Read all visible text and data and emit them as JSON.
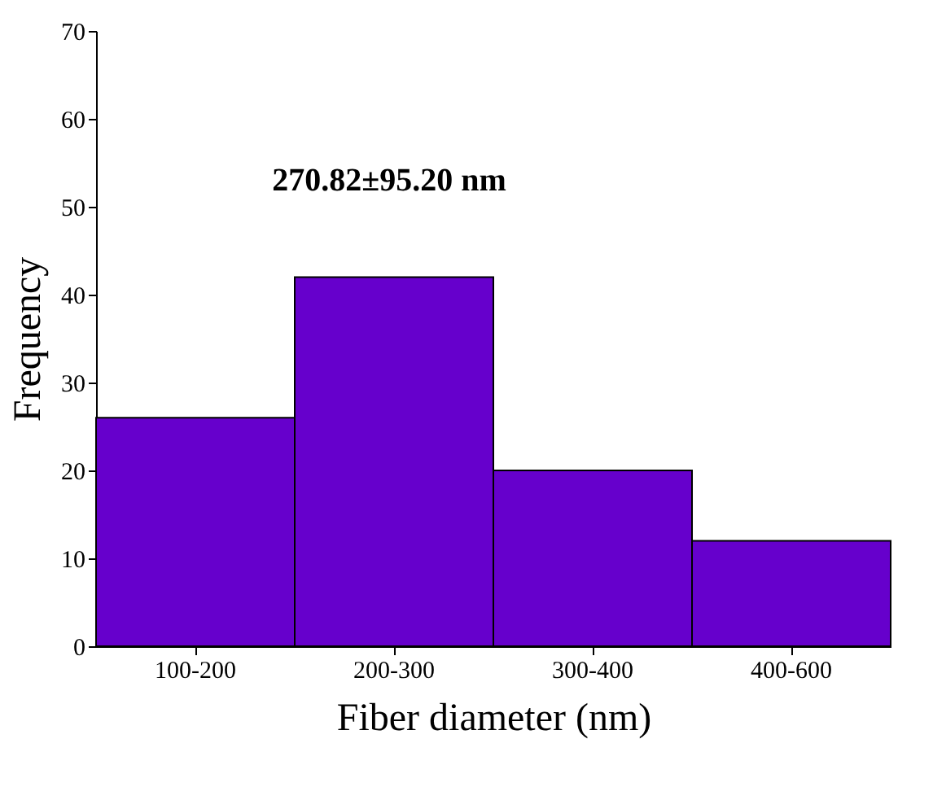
{
  "chart_data": {
    "type": "bar",
    "xlabel": "Fiber diameter (nm)",
    "ylabel": "Frequency",
    "categories": [
      "100-200",
      "200-300",
      "300-400",
      "400-600"
    ],
    "values": [
      26,
      42,
      20,
      12
    ],
    "color": "#6600cc",
    "ylim": [
      0,
      70
    ],
    "yticks": [
      0,
      10,
      20,
      30,
      40,
      50,
      60,
      70
    ],
    "grid": false,
    "annotations": [
      "270.82±95.20 nm"
    ]
  }
}
